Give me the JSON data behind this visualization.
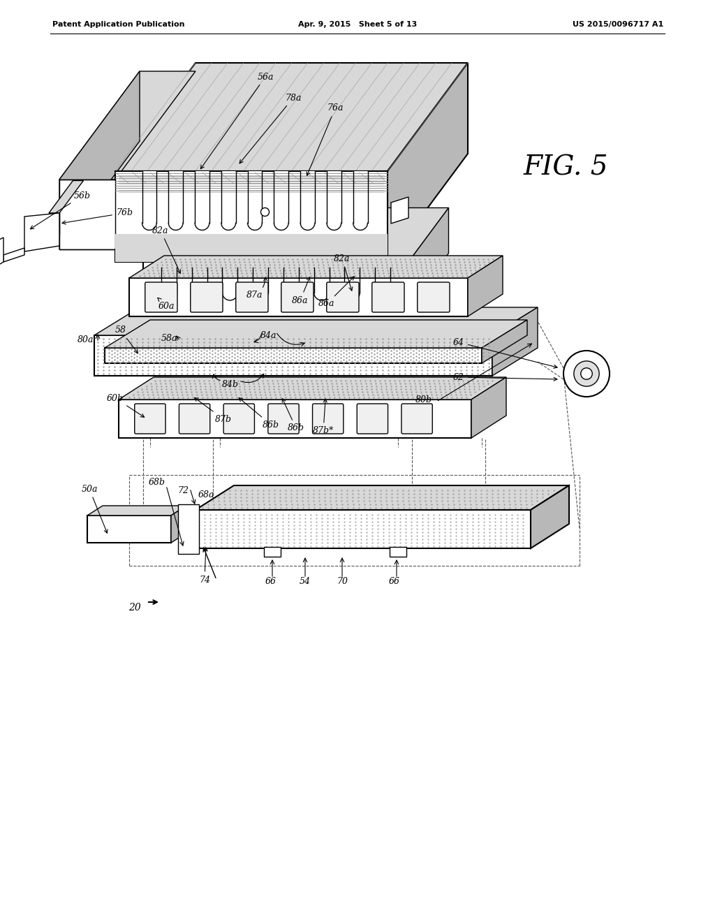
{
  "header_left": "Patent Application Publication",
  "header_center": "Apr. 9, 2015   Sheet 5 of 13",
  "header_right": "US 2015/0096717 A1",
  "fig_label": "FIG. 5",
  "background_color": "#ffffff",
  "lc": "#000000",
  "gray_light": "#d8d8d8",
  "gray_med": "#b8b8b8",
  "gray_dark": "#888888",
  "hatch_gray": "#cccccc"
}
